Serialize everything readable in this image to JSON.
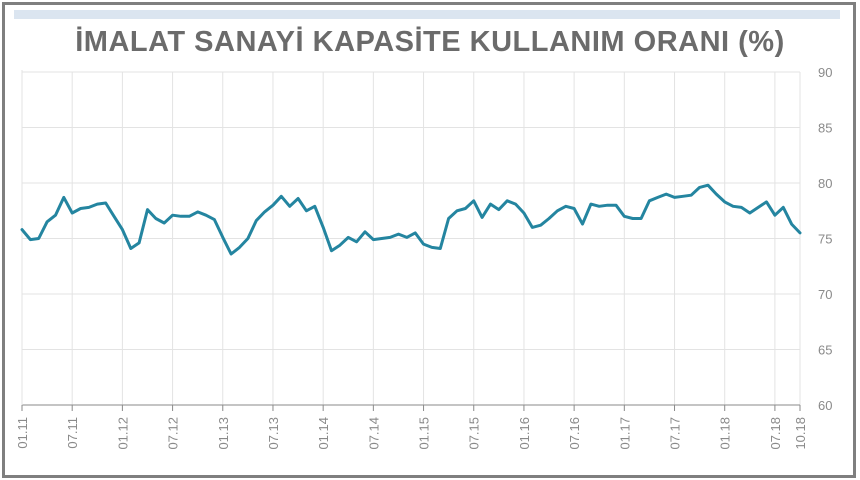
{
  "chart_data": {
    "type": "line",
    "title": "İMALAT SANAYİ KAPASİTE KULLANIM ORANI (%)",
    "xlabel": "",
    "ylabel": "",
    "ylim": [
      60,
      90
    ],
    "yticks": [
      60,
      65,
      70,
      75,
      80,
      85,
      90
    ],
    "grid": true,
    "x_tick_labels": [
      "01.11",
      "07.11",
      "01.12",
      "07.12",
      "01.13",
      "07.13",
      "01.14",
      "07.14",
      "01.15",
      "07.15",
      "01.16",
      "07.16",
      "01.17",
      "07.17",
      "01.18",
      "07.18",
      "10.18"
    ],
    "x_tick_months": [
      0,
      6,
      12,
      18,
      24,
      30,
      36,
      42,
      48,
      54,
      60,
      66,
      72,
      78,
      84,
      90,
      93
    ],
    "line_color": "#2485a0",
    "series": [
      {
        "x_months": [
          0,
          1,
          2,
          3,
          4,
          5,
          6,
          7,
          8,
          9,
          10,
          11,
          12,
          13,
          14,
          15,
          16,
          17,
          18,
          19,
          20,
          21,
          22,
          23,
          24,
          25,
          26,
          27,
          28,
          29,
          30,
          31,
          32,
          33,
          34,
          35,
          36,
          37,
          38,
          39,
          40,
          41,
          42,
          43,
          44,
          45,
          46,
          47,
          48,
          49,
          50,
          51,
          52,
          53,
          54,
          55,
          56,
          57,
          58,
          59,
          60,
          61,
          62,
          63,
          64,
          65,
          66,
          67,
          68,
          69,
          70,
          71,
          72,
          73,
          74,
          75,
          76,
          77,
          78,
          79,
          80,
          81,
          82,
          83,
          84,
          85,
          86,
          87,
          88,
          89,
          90,
          91,
          92,
          93
        ],
        "values": [
          75.8,
          74.9,
          75.0,
          76.5,
          77.1,
          78.7,
          77.3,
          77.7,
          77.8,
          78.1,
          78.2,
          77.0,
          75.8,
          74.1,
          74.6,
          77.6,
          76.8,
          76.4,
          77.1,
          77.0,
          77.0,
          77.4,
          77.1,
          76.7,
          75.1,
          73.6,
          74.2,
          75.0,
          76.6,
          77.4,
          78.0,
          78.8,
          77.9,
          78.6,
          77.5,
          77.9,
          76.0,
          73.9,
          74.4,
          75.1,
          74.7,
          75.6,
          74.9,
          75.0,
          75.1,
          75.4,
          75.1,
          75.5,
          74.5,
          74.2,
          74.1,
          76.8,
          77.5,
          77.7,
          78.4,
          76.9,
          78.1,
          77.6,
          78.4,
          78.1,
          77.3,
          76.0,
          76.2,
          76.8,
          77.5,
          77.9,
          77.7,
          76.3,
          78.1,
          77.9,
          78.0,
          78.0,
          77.0,
          76.8,
          76.8,
          78.4,
          78.7,
          79.0,
          78.7,
          78.8,
          78.9,
          79.6,
          79.8,
          79.0,
          78.3,
          77.9,
          77.8,
          77.3,
          77.8,
          78.3,
          77.1,
          77.8,
          76.3,
          75.5
        ]
      }
    ]
  }
}
